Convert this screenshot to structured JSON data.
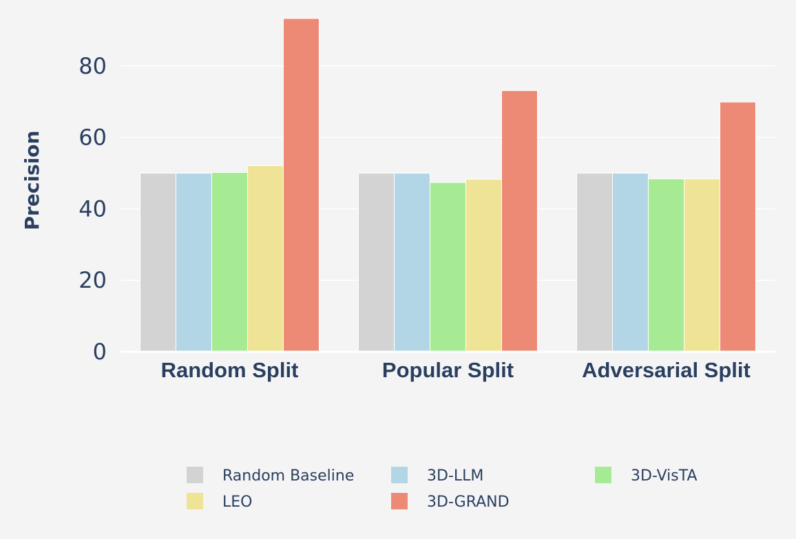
{
  "chart_data": {
    "type": "bar",
    "title": "",
    "xlabel": "",
    "ylabel": "Precision",
    "ylim": [
      0,
      95
    ],
    "yticks": [
      0,
      20,
      40,
      60,
      80
    ],
    "categories": [
      "Random Split",
      "Popular Split",
      "Adversarial Split"
    ],
    "series": [
      {
        "name": "Random Baseline",
        "color": "#d3d3d3",
        "values": [
          50,
          50,
          50
        ]
      },
      {
        "name": "3D-LLM",
        "color": "#b3d6e6",
        "values": [
          50,
          50,
          50
        ]
      },
      {
        "name": "3D-VisTA",
        "color": "#a6ea93",
        "values": [
          50.2,
          47.4,
          48.4
        ]
      },
      {
        "name": "LEO",
        "color": "#efe496",
        "values": [
          52.1,
          48.3,
          48.4
        ]
      },
      {
        "name": "3D-GRAND",
        "color": "#ed8a76",
        "values": [
          93.3,
          73.1,
          69.9
        ]
      }
    ],
    "legend_position": "bottom"
  }
}
